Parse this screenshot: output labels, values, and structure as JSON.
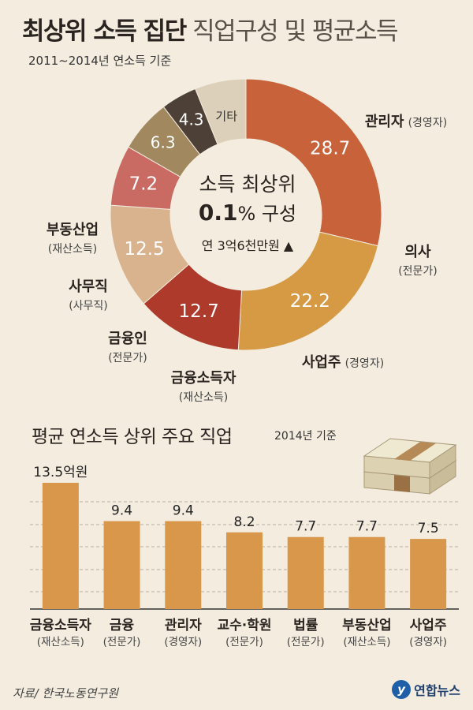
{
  "header": {
    "title_bold": "최상위 소득 집단",
    "title_light": "직업구성 및 평균소득",
    "subtitle": "2011∼2014년 연소득 기준"
  },
  "donut": {
    "center_line1": "소득 최상위",
    "center_pct": "0.1",
    "center_pct_unit": "% 구성",
    "center_line3": "연 3억6천만원",
    "center_arrow": "▲"
  },
  "chart_data": [
    {
      "type": "pie",
      "variant": "donut",
      "title": "최상위 소득 집단 직업구성 및 평균소득",
      "subtitle": "2011∼2014년 연소득 기준",
      "slices": [
        {
          "name": "관리자",
          "note": "(경영자)",
          "value": 28.7,
          "label": "28.7",
          "color": "#c8623a"
        },
        {
          "name": "의사",
          "note": "(전문가)",
          "value": 22.2,
          "label": "22.2",
          "color": "#d69a45"
        },
        {
          "name": "사업주",
          "note": "(경영자)",
          "value": 12.7,
          "label": "12.7",
          "color": "#ae3a2c"
        },
        {
          "name": "금융소득자",
          "note": "(재산소득)",
          "value": 12.5,
          "label": "12.5",
          "color": "#d9b28e"
        },
        {
          "name": "금융인",
          "note": "(전문가)",
          "value": 7.2,
          "label": "7.2",
          "color": "#c96a63"
        },
        {
          "name": "사무직",
          "note": "(사무직)",
          "value": 6.3,
          "label": "6.3",
          "color": "#a1885f"
        },
        {
          "name": "부동산업",
          "note": "(재산소득)",
          "value": 4.3,
          "label": "4.3",
          "color": "#4d4037"
        },
        {
          "name": "기타",
          "note": "",
          "value": 6.1,
          "label": "기타",
          "color": "#dcd0ba"
        }
      ]
    },
    {
      "type": "bar",
      "title": "평균 연소득 상위 주요 직업",
      "note": "2014년 기준",
      "unit": "억원",
      "categories": [
        "금융소득자",
        "금융",
        "관리자",
        "교수·학원",
        "법률",
        "부동산업",
        "사업주"
      ],
      "sublabels": [
        "(재산소득)",
        "(전문가)",
        "(경영자)",
        "(전문가)",
        "(전문가)",
        "(재산소득)",
        "(경영자)"
      ],
      "values": [
        13.5,
        9.4,
        9.4,
        8.2,
        7.7,
        7.7,
        7.5
      ],
      "value_labels": [
        "13.5억원",
        "9.4",
        "9.4",
        "8.2",
        "7.7",
        "7.7",
        "7.5"
      ],
      "bar_color": "#d8974a",
      "grid": true
    }
  ],
  "footer": {
    "source": "자료/ 한국노동연구원",
    "logo_mark": "y",
    "logo_text": "연합뉴스"
  }
}
